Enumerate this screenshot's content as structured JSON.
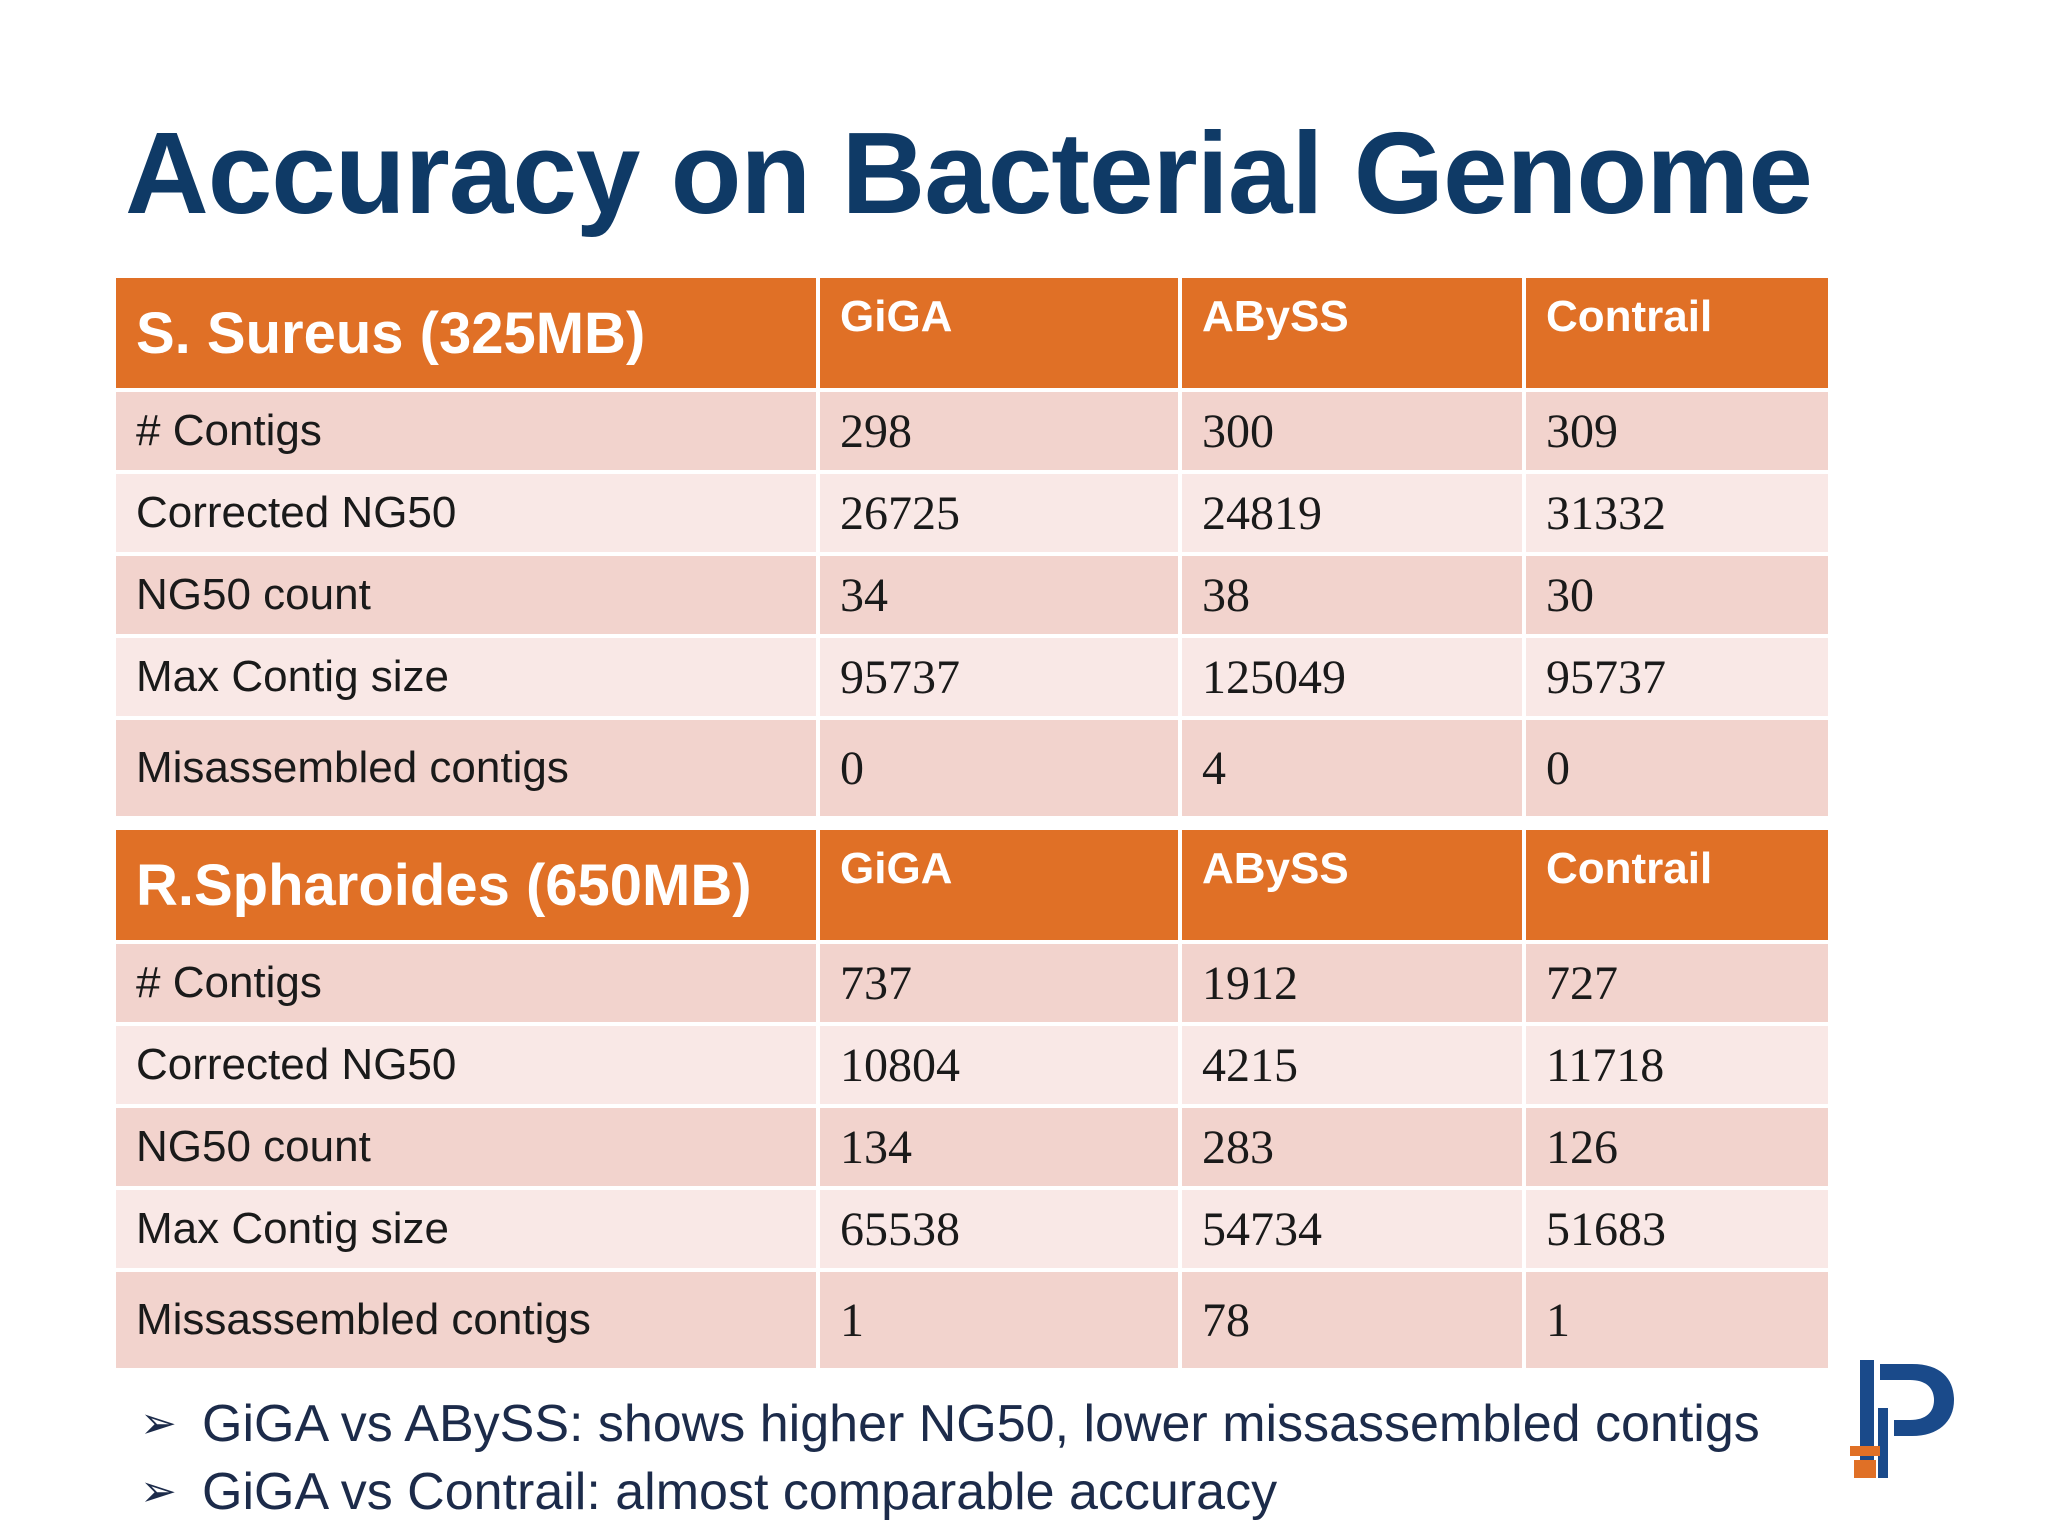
{
  "title": "Accuracy on Bacterial Genome",
  "tables": [
    {
      "organism": "S. Sureus (325MB)",
      "tools": [
        "GiGA",
        "ABySS",
        "Contrail"
      ],
      "rows": [
        {
          "metric": "# Contigs",
          "values": [
            "298",
            "300",
            "309"
          ]
        },
        {
          "metric": "Corrected NG50",
          "values": [
            "26725",
            "24819",
            "31332"
          ]
        },
        {
          "metric": "NG50 count",
          "values": [
            "34",
            "38",
            "30"
          ]
        },
        {
          "metric": "Max Contig size",
          "values": [
            "95737",
            "125049",
            "95737"
          ]
        },
        {
          "metric": "Misassembled contigs",
          "values": [
            "0",
            "4",
            "0"
          ]
        }
      ]
    },
    {
      "organism": "R.Spharoides (650MB)",
      "tools": [
        "GiGA",
        "ABySS",
        "Contrail"
      ],
      "rows": [
        {
          "metric": "# Contigs",
          "values": [
            "737",
            "1912",
            "727"
          ]
        },
        {
          "metric": "Corrected NG50",
          "values": [
            "10804",
            "4215",
            "11718"
          ]
        },
        {
          "metric": "NG50 count",
          "values": [
            "134",
            "283",
            "126"
          ]
        },
        {
          "metric": "Max Contig size",
          "values": [
            "65538",
            "54734",
            "51683"
          ]
        },
        {
          "metric": "Missassembled contigs",
          "values": [
            "1",
            "78",
            "1"
          ]
        }
      ]
    }
  ],
  "bullets": [
    "GiGA vs ABySS: shows higher NG50, lower missassembled contigs",
    "GiGA vs Contrail: almost comparable accuracy"
  ],
  "bullet_glyph": "➢",
  "colors": {
    "title": "#0f3a66",
    "header": "#e07026",
    "row_odd": "#f2d3cd",
    "row_even": "#f9e8e6",
    "logo_blue": "#1a4a8a",
    "logo_orange": "#e07026"
  }
}
